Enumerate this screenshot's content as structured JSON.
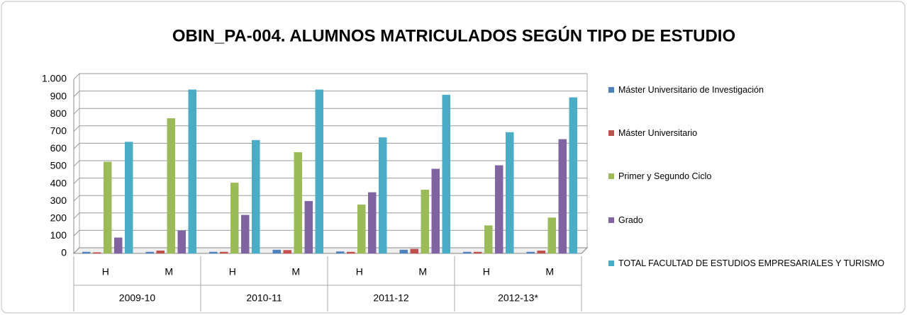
{
  "chart_data": {
    "type": "bar",
    "title": "OBIN_PA-004. ALUMNOS MATRICULADOS SEGÚN TIPO DE ESTUDIO",
    "categories": [
      "H",
      "M",
      "H",
      "M",
      "H",
      "M",
      "H",
      "M"
    ],
    "category_groups": [
      "2009-10",
      "2010-11",
      "2011-12",
      "2012-13*"
    ],
    "series": [
      {
        "name": "Máster Universitario de Investigación",
        "color": "#4f81bd",
        "values": [
          8,
          8,
          8,
          20,
          10,
          20,
          8,
          8
        ]
      },
      {
        "name": "Máster Universitario",
        "color": "#c0504d",
        "values": [
          5,
          15,
          8,
          18,
          8,
          25,
          8,
          15
        ]
      },
      {
        "name": "Primer y Segundo Ciclo",
        "color": "#9bbb59",
        "values": [
          525,
          775,
          405,
          580,
          280,
          365,
          160,
          205
        ]
      },
      {
        "name": "Grado",
        "color": "#8064a2",
        "values": [
          90,
          130,
          220,
          300,
          350,
          485,
          505,
          655
        ]
      },
      {
        "name": "TOTAL FACULTAD DE ESTUDIOS EMPRESARIALES Y TURISMO",
        "color": "#4bacc6",
        "values": [
          640,
          940,
          650,
          940,
          665,
          910,
          695,
          895
        ]
      }
    ],
    "ylim": [
      0,
      1000
    ],
    "yticks": [
      0,
      100,
      200,
      300,
      400,
      500,
      600,
      700,
      800,
      900,
      {
        "value": 1000,
        "label": "1.000"
      }
    ],
    "grid": true,
    "legend": "right"
  }
}
